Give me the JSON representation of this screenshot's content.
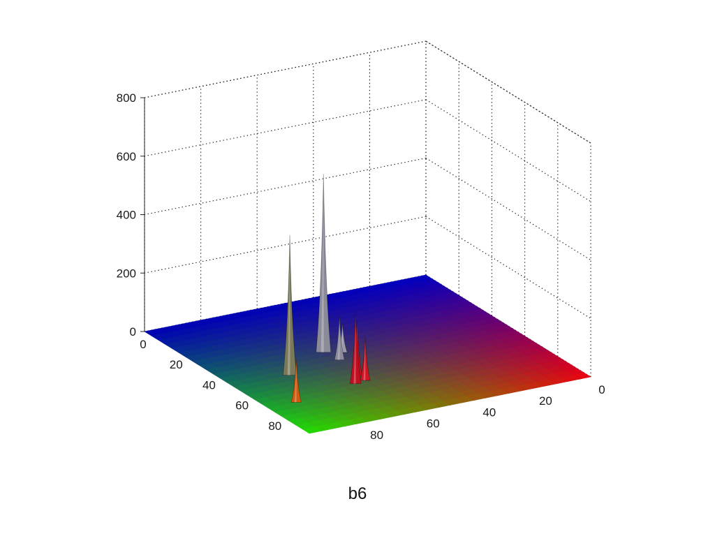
{
  "caption": "b6",
  "chart_data": {
    "type": "surface",
    "title": "",
    "xlabel": "",
    "ylabel": "",
    "zlabel": "",
    "grid": true,
    "x_ticks": [
      "0",
      "20",
      "40",
      "60",
      "80"
    ],
    "y_ticks": [
      "0",
      "20",
      "40",
      "60",
      "80"
    ],
    "z_ticks": [
      "0",
      "200",
      "400",
      "600",
      "800"
    ],
    "xlim": [
      0,
      100
    ],
    "ylim": [
      0,
      100
    ],
    "zlim": [
      0,
      800
    ],
    "floor_colors": {
      "x0_y0": "#0000c0",
      "x100_y0": "#ee0010",
      "x0_y100": "#0000b4",
      "x100_y100": "#22dd00"
    },
    "peaks": [
      {
        "x": 54,
        "y": 80,
        "z": 480,
        "color": "#7a7a5a"
      },
      {
        "x": 42,
        "y": 61,
        "z": 610,
        "color": "#8a8a98"
      },
      {
        "x": 50,
        "y": 60,
        "z": 150,
        "color": "#8a8a9c"
      },
      {
        "x": 45,
        "y": 56,
        "z": 100,
        "color": "#9a9aa8"
      },
      {
        "x": 70,
        "y": 66,
        "z": 250,
        "color": "#c01020"
      },
      {
        "x": 64,
        "y": 62,
        "z": 190,
        "color": "#c81020"
      },
      {
        "x": 69,
        "y": 62,
        "z": 150,
        "color": "#d01525"
      },
      {
        "x": 75,
        "y": 90,
        "z": 150,
        "color": "#d05a10"
      }
    ]
  }
}
